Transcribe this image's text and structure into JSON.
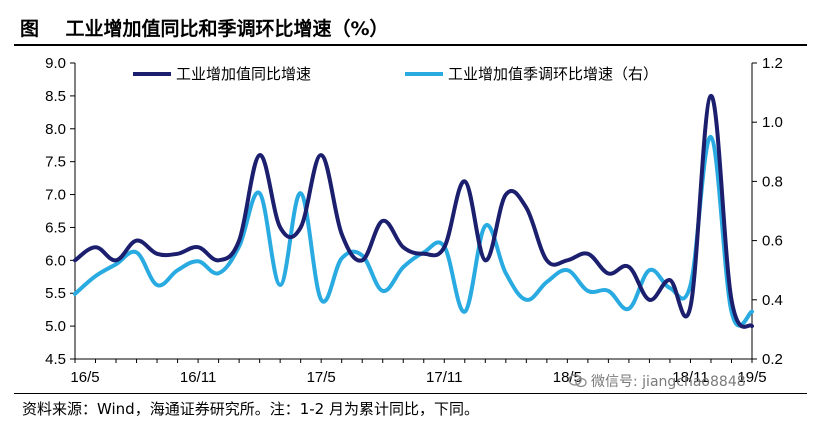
{
  "header": {
    "title": "图    工业增加值同比和季调环比增速（%）"
  },
  "footer": {
    "source": "资料来源：Wind，海通证券研究所。注：1-2 月为累计同比，下同。"
  },
  "watermark": {
    "text": "微信号: jiangchao8848"
  },
  "chart_data": {
    "type": "line",
    "x_tick_labels": [
      "16/5",
      "16/11",
      "17/5",
      "17/11",
      "18/5",
      "18/11",
      "19/5"
    ],
    "ylim_left": [
      4.5,
      9.0
    ],
    "yticks_left": [
      "4.5",
      "5.0",
      "5.5",
      "6.0",
      "6.5",
      "7.0",
      "7.5",
      "8.0",
      "8.5",
      "9.0"
    ],
    "ylim_right": [
      0.2,
      1.2
    ],
    "yticks_right": [
      "0.2",
      "0.4",
      "0.6",
      "0.8",
      "1.0",
      "1.2"
    ],
    "grid": false,
    "legend_position": "top",
    "series": [
      {
        "name": "工业增加值同比增速",
        "axis": "left",
        "color": "#1b1f6e",
        "x": [
          "16/5",
          "16/6",
          "16/7",
          "16/8",
          "16/9",
          "16/10",
          "16/11",
          "16/12",
          "17/1-2",
          "17/3",
          "17/4",
          "17/5",
          "17/6",
          "17/7",
          "17/8",
          "17/9",
          "17/10",
          "17/11",
          "17/12",
          "18/1-2",
          "18/3",
          "18/4",
          "18/5",
          "18/6",
          "18/7",
          "18/8",
          "18/9",
          "18/10",
          "18/11",
          "18/12",
          "19/1-2",
          "19/3",
          "19/4",
          "19/5"
        ],
        "values": [
          6.0,
          6.2,
          6.0,
          6.3,
          6.1,
          6.1,
          6.2,
          6.0,
          6.3,
          7.6,
          6.5,
          6.5,
          7.6,
          6.4,
          6.0,
          6.6,
          6.2,
          6.1,
          6.2,
          7.2,
          6.0,
          7.0,
          6.8,
          6.0,
          6.0,
          6.1,
          5.8,
          5.9,
          5.4,
          5.7,
          5.3,
          8.5,
          5.4,
          5.0
        ]
      },
      {
        "name": "工业增加值季调环比增速（右）",
        "axis": "right",
        "color": "#29abe2",
        "x": [
          "16/5",
          "16/6",
          "16/7",
          "16/8",
          "16/9",
          "16/10",
          "16/11",
          "16/12",
          "17/1-2",
          "17/3",
          "17/4",
          "17/5",
          "17/6",
          "17/7",
          "17/8",
          "17/9",
          "17/10",
          "17/11",
          "17/12",
          "18/1-2",
          "18/3",
          "18/4",
          "18/5",
          "18/6",
          "18/7",
          "18/8",
          "18/9",
          "18/10",
          "18/11",
          "18/12",
          "19/1-2",
          "19/3",
          "19/4",
          "19/5"
        ],
        "values": [
          0.42,
          0.48,
          0.52,
          0.56,
          0.45,
          0.5,
          0.53,
          0.49,
          0.58,
          0.76,
          0.45,
          0.76,
          0.4,
          0.54,
          0.55,
          0.43,
          0.51,
          0.56,
          0.58,
          0.36,
          0.65,
          0.49,
          0.4,
          0.46,
          0.5,
          0.43,
          0.43,
          0.37,
          0.5,
          0.44,
          0.45,
          0.95,
          0.36,
          0.36
        ]
      }
    ]
  }
}
